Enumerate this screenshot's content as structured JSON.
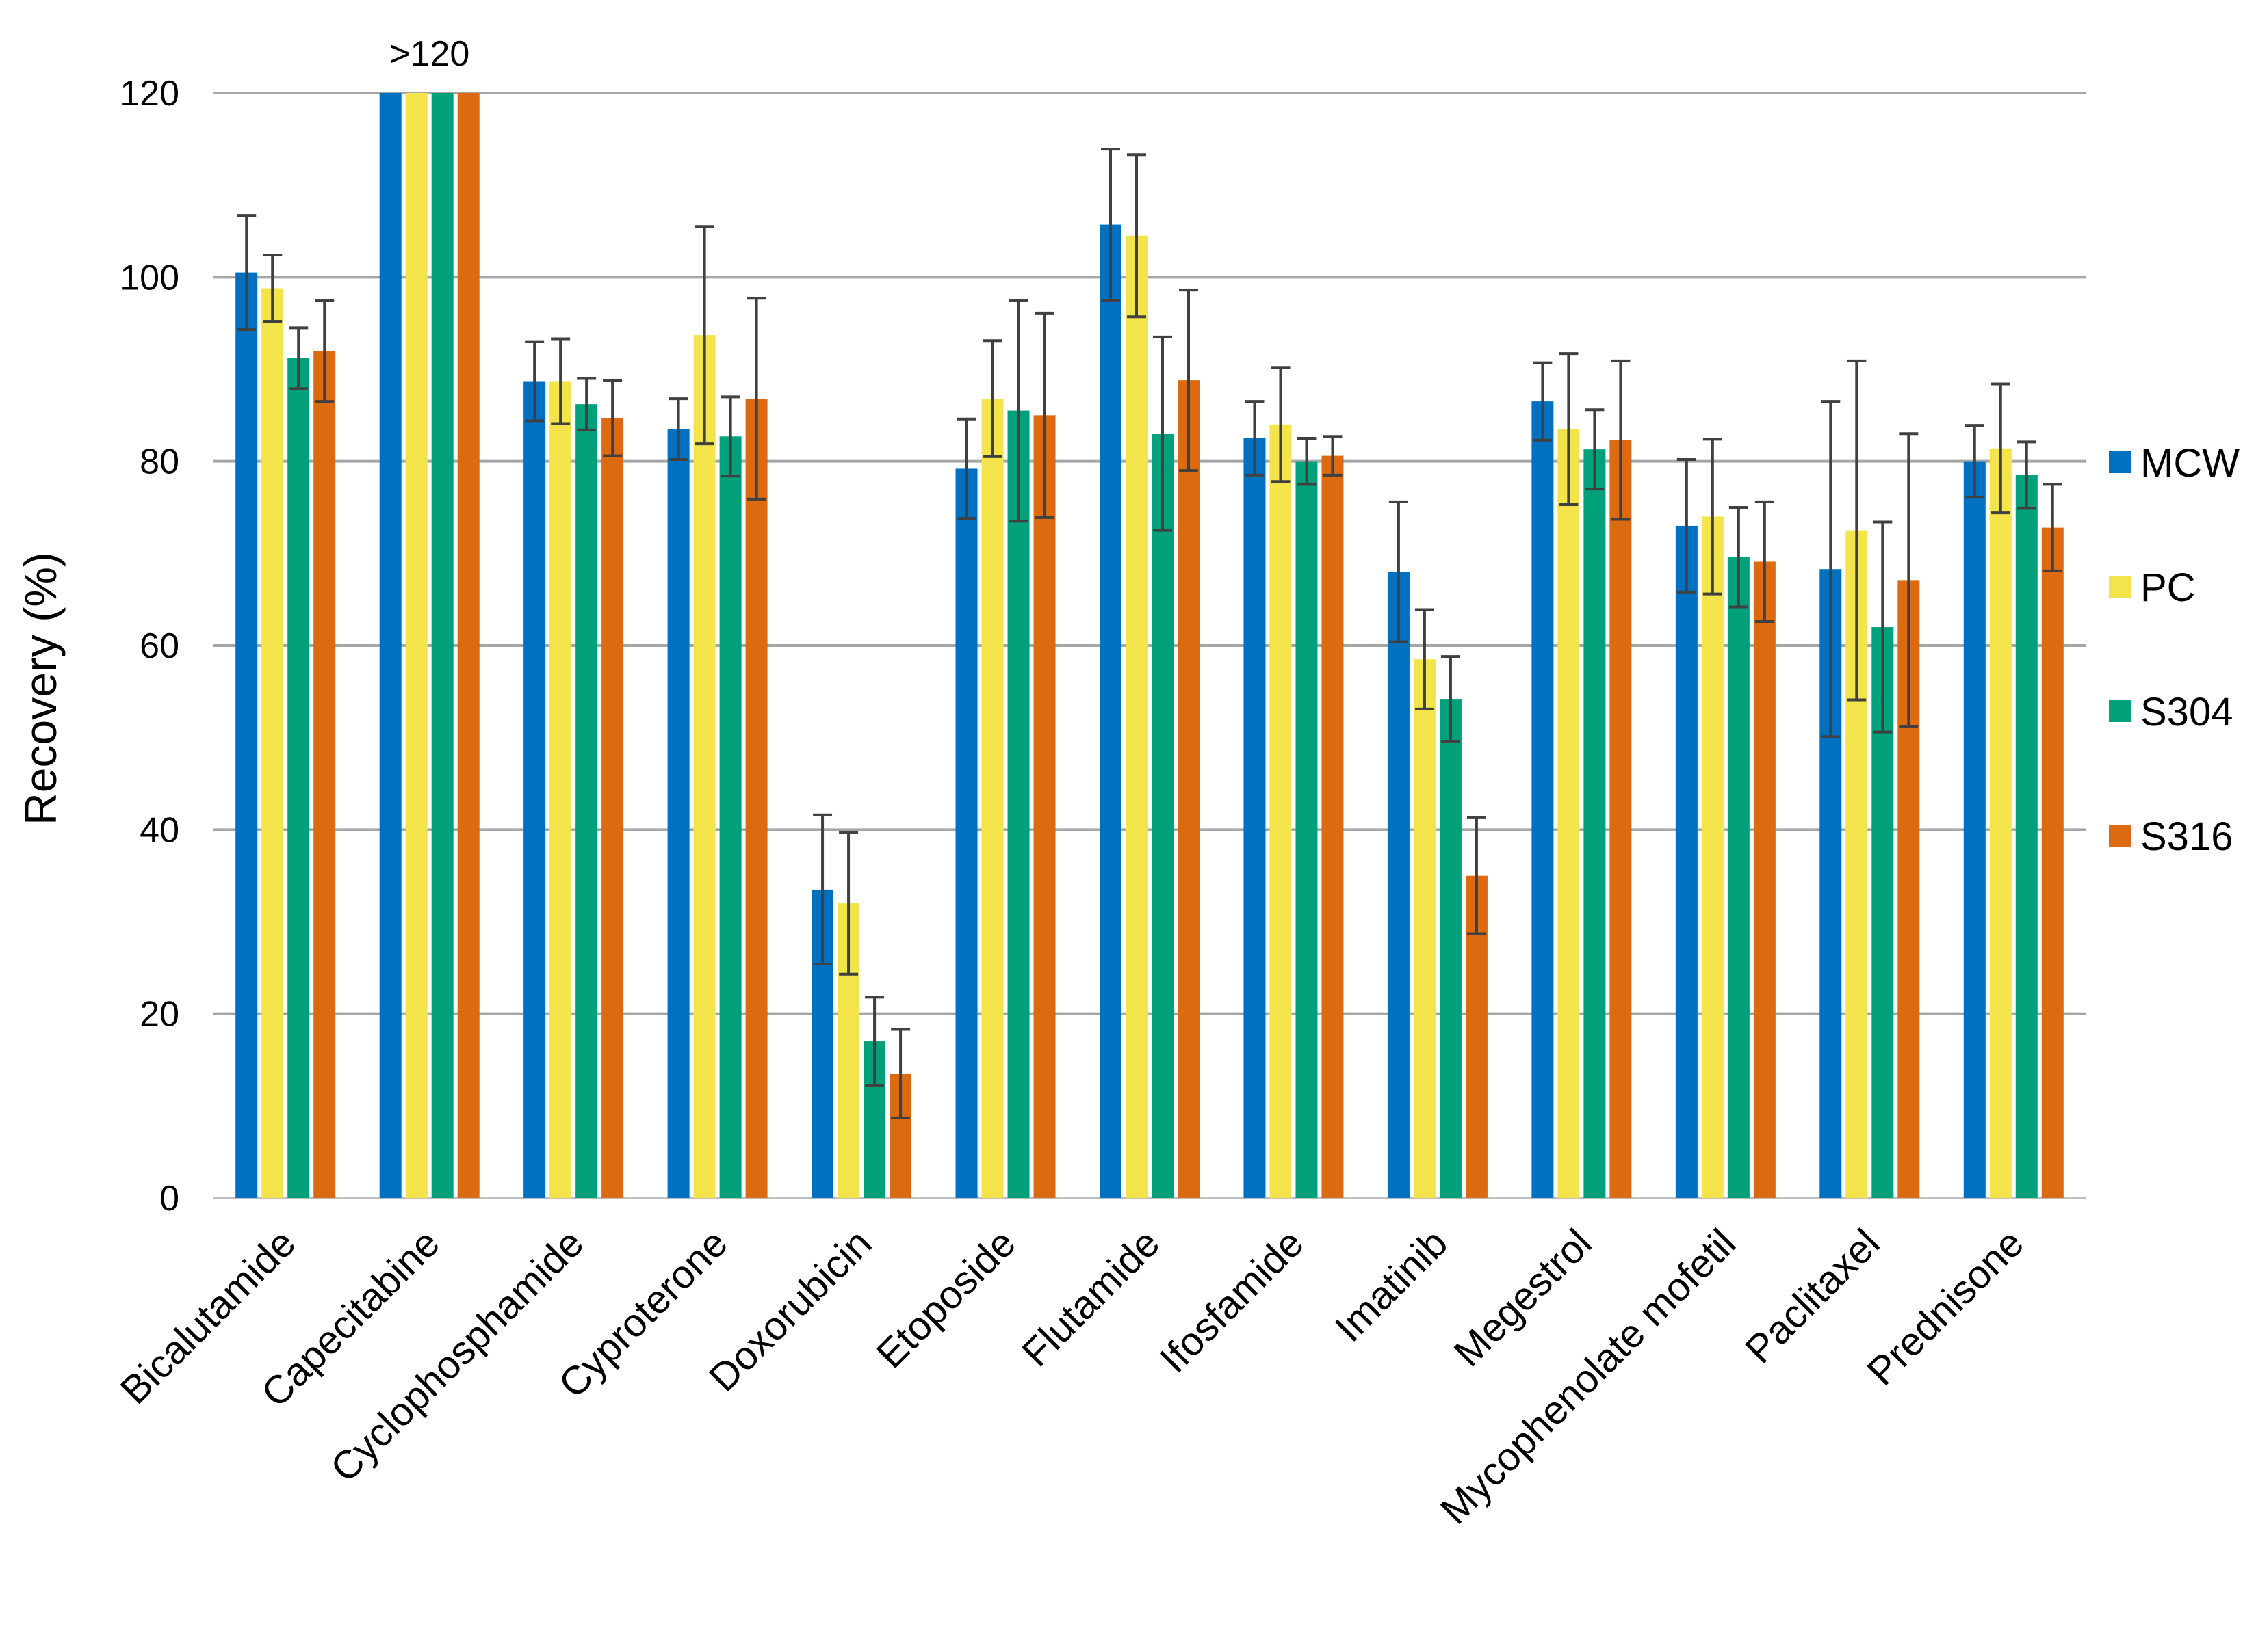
{
  "chart_data": {
    "type": "bar",
    "title": "",
    "xlabel": "",
    "ylabel": "Recovery (%)",
    "ylim": [
      0,
      120
    ],
    "yticks": [
      0,
      20,
      40,
      60,
      80,
      100,
      120
    ],
    "ytick_labels": [
      "0",
      "20",
      "40",
      "60",
      "80",
      "100",
      "120"
    ],
    "grid": true,
    "legend_position": "right",
    "categories": [
      "Bicalutamide",
      "Capecitabine",
      "Cyclophosphamide",
      "Cyproterone",
      "Doxorubicin",
      "Etoposide",
      "Flutamide",
      "Ifosfamide",
      "Imatinib",
      "Megestrol",
      "Mycophenolate mofetil",
      "Paclitaxel",
      "Prednisone"
    ],
    "series": [
      {
        "name": "MCW",
        "color": "#0070C0",
        "values": [
          100.5,
          120,
          88.7,
          83.5,
          33.5,
          79.2,
          105.7,
          82.5,
          68.0,
          86.5,
          73.0,
          68.3,
          80.0
        ],
        "errors": [
          6.2,
          0,
          4.3,
          3.3,
          8.1,
          5.4,
          8.2,
          4.0,
          7.6,
          4.2,
          7.2,
          18.2,
          3.9
        ]
      },
      {
        "name": "PC",
        "color": "#F2E44A",
        "values": [
          98.8,
          120,
          88.7,
          93.7,
          32.0,
          86.8,
          104.5,
          84.0,
          58.5,
          83.5,
          74.0,
          72.5,
          81.4
        ],
        "errors": [
          3.6,
          0,
          4.6,
          11.8,
          7.7,
          6.3,
          8.8,
          6.2,
          5.4,
          8.2,
          8.4,
          18.4,
          7.0
        ]
      },
      {
        "name": "S304",
        "color": "#00A07A",
        "values": [
          91.2,
          120,
          86.2,
          82.7,
          17.0,
          85.5,
          83.0,
          80.0,
          54.2,
          81.3,
          69.6,
          62.0,
          78.5
        ],
        "errors": [
          3.3,
          0,
          2.8,
          4.3,
          4.8,
          12.0,
          10.5,
          2.5,
          4.6,
          4.3,
          5.4,
          11.4,
          3.6
        ]
      },
      {
        "name": "S316",
        "color": "#DB6A10",
        "values": [
          92.0,
          120,
          84.7,
          86.8,
          13.5,
          85.0,
          88.8,
          80.6,
          35.0,
          82.3,
          69.1,
          67.1,
          72.8
        ],
        "errors": [
          5.5,
          0,
          4.1,
          10.9,
          4.8,
          11.1,
          9.8,
          2.1,
          6.3,
          8.6,
          6.5,
          15.9,
          4.7
        ]
      }
    ],
    "annotations": [
      {
        "category": "Capecitabine",
        "text": ">120"
      }
    ]
  }
}
